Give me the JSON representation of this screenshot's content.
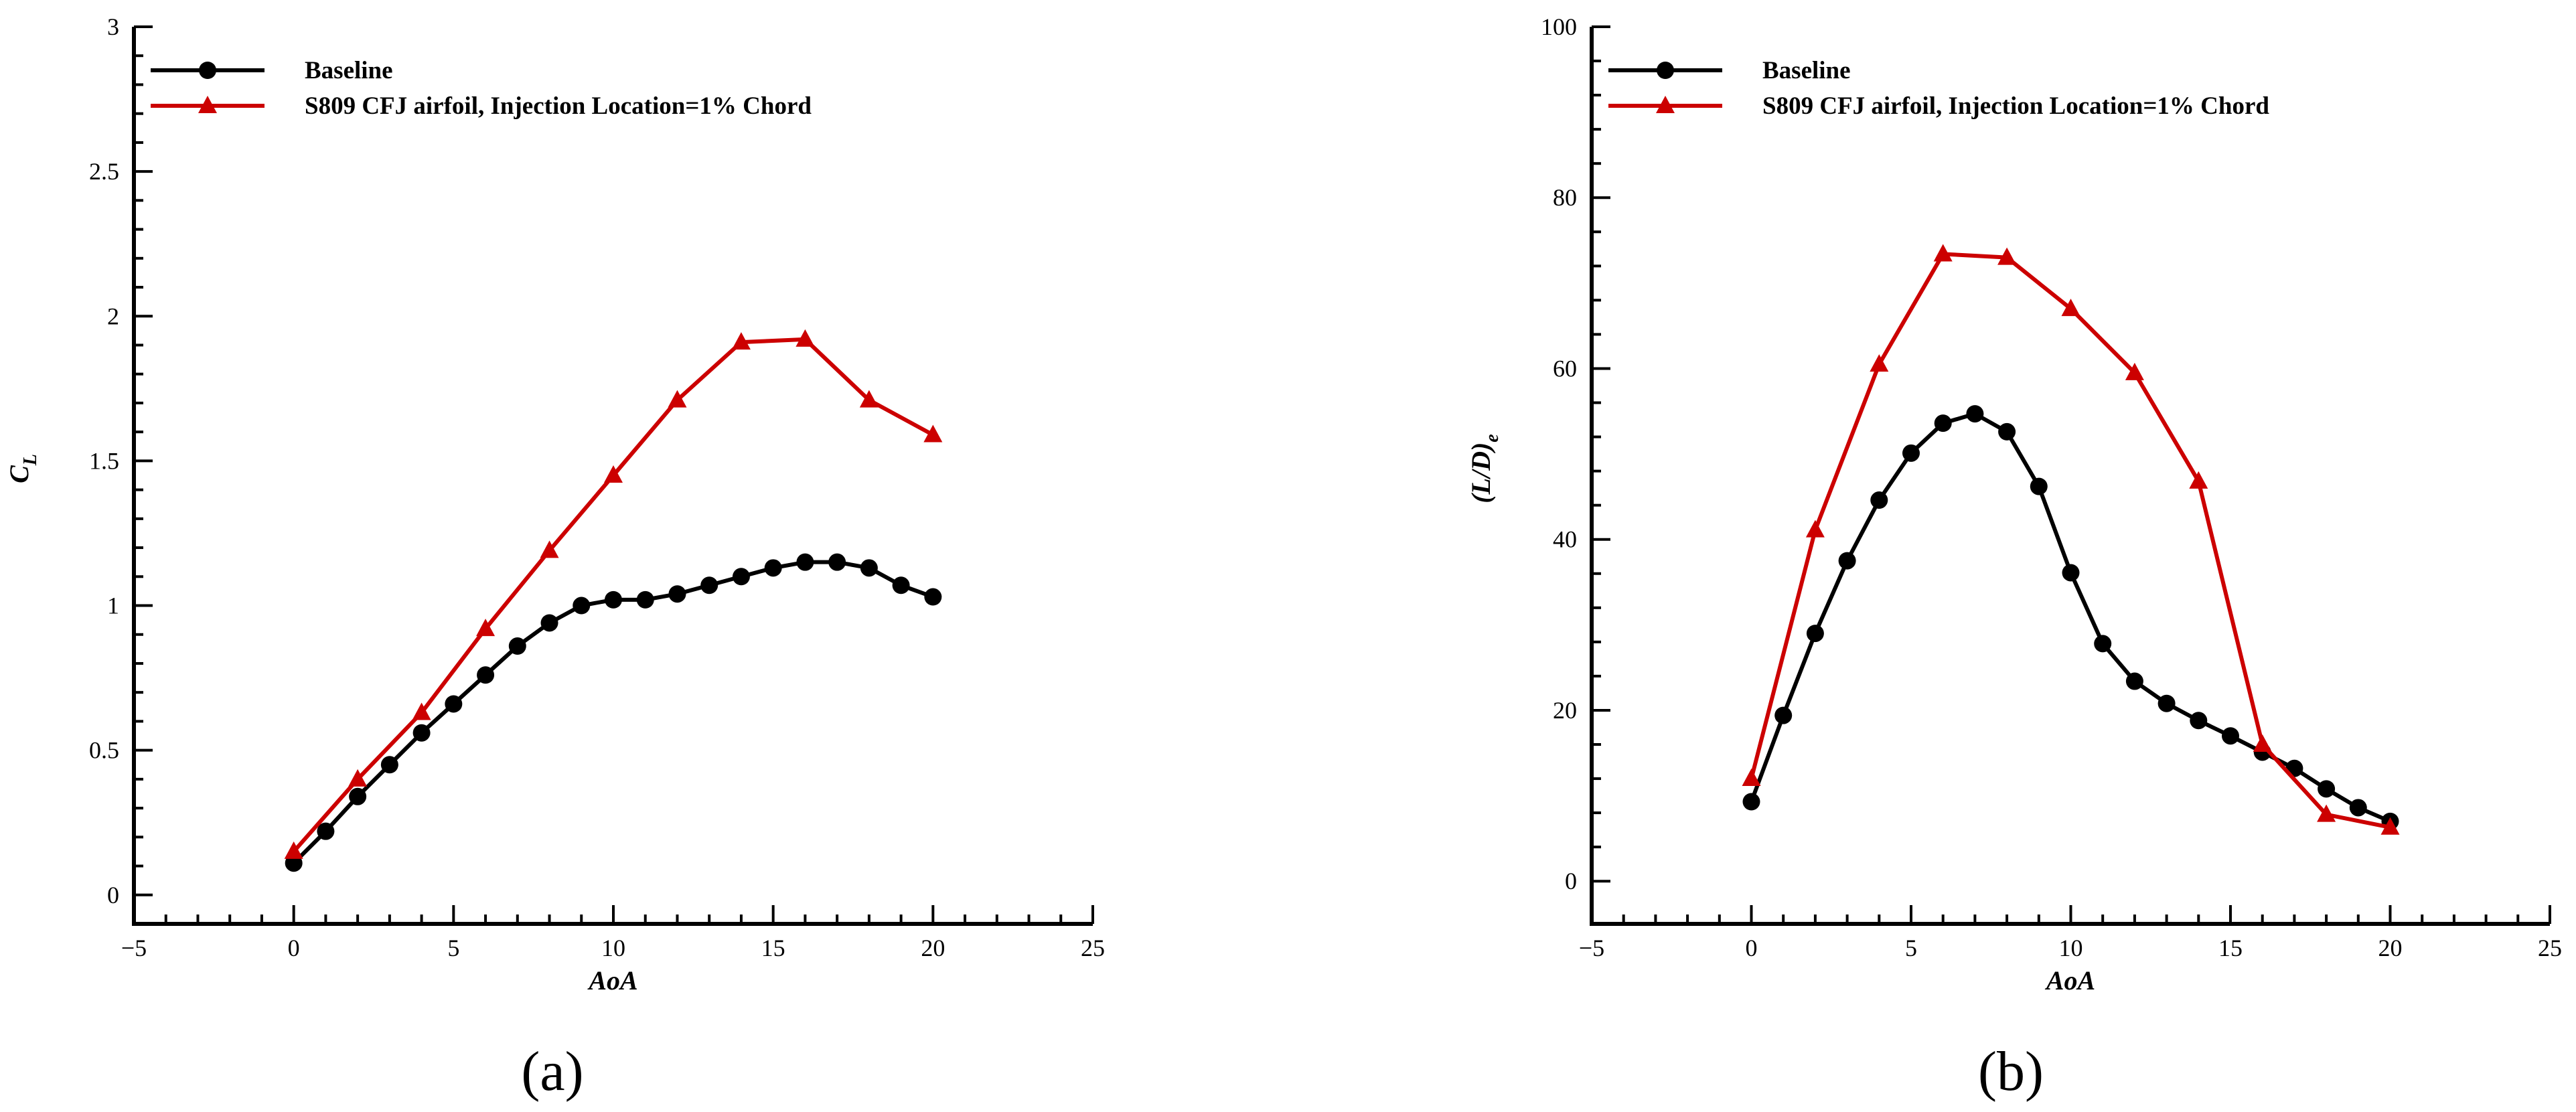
{
  "colors": {
    "baseline": "#000000",
    "cfj": "#cc0000"
  },
  "panel_labels": [
    "(a)",
    "(b)"
  ],
  "chart_data": [
    {
      "type": "line",
      "panel": "(a)",
      "xlabel": "AoA",
      "ylabel": "C",
      "ylabel_sub": "L",
      "xlim": [
        -5,
        25
      ],
      "ylim": [
        -0.1,
        3
      ],
      "xticks": [
        -5,
        0,
        5,
        10,
        15,
        20,
        25
      ],
      "xtick_labels": [
        "−5",
        "0",
        "5",
        "10",
        "15",
        "20",
        "25"
      ],
      "yticks": [
        0,
        0.5,
        1,
        1.5,
        2,
        2.5,
        3
      ],
      "ytick_labels": [
        "0",
        "0.5",
        "1",
        "1.5",
        "2",
        "2.5",
        "3"
      ],
      "legend_position": "top-left",
      "series": [
        {
          "name": "Baseline",
          "marker": "circle",
          "x": [
            0,
            1,
            2,
            3,
            4,
            5,
            6,
            7,
            8,
            9,
            10,
            11,
            12,
            13,
            14,
            15,
            16,
            17,
            18,
            19,
            20
          ],
          "y": [
            0.11,
            0.22,
            0.34,
            0.45,
            0.56,
            0.66,
            0.76,
            0.86,
            0.94,
            1.0,
            1.02,
            1.02,
            1.04,
            1.07,
            1.1,
            1.13,
            1.15,
            1.15,
            1.13,
            1.07,
            1.03
          ]
        },
        {
          "name": "S809 CFJ airfoil, Injection Location=1% Chord",
          "marker": "triangle",
          "x": [
            0,
            2,
            4,
            6,
            8,
            10,
            12,
            14,
            16,
            18,
            20
          ],
          "y": [
            0.15,
            0.4,
            0.63,
            0.92,
            1.19,
            1.45,
            1.71,
            1.91,
            1.92,
            1.71,
            1.59
          ]
        }
      ]
    },
    {
      "type": "line",
      "panel": "(b)",
      "xlabel": "AoA",
      "ylabel": "(L/D)",
      "ylabel_sub": "e",
      "xlim": [
        -5,
        25
      ],
      "ylim": [
        -5,
        100
      ],
      "xticks": [
        -5,
        0,
        5,
        10,
        15,
        20,
        25
      ],
      "xtick_labels": [
        "−5",
        "0",
        "5",
        "10",
        "15",
        "20",
        "25"
      ],
      "yticks": [
        0,
        20,
        40,
        60,
        80,
        100
      ],
      "ytick_labels": [
        "0",
        "20",
        "40",
        "60",
        "80",
        "100"
      ],
      "legend_position": "top-left",
      "series": [
        {
          "name": "Baseline",
          "marker": "circle",
          "x": [
            0,
            1,
            2,
            3,
            4,
            5,
            6,
            7,
            8,
            9,
            10,
            11,
            12,
            13,
            14,
            15,
            16,
            17,
            18,
            19,
            20
          ],
          "y": [
            9.3,
            19.4,
            29.0,
            37.5,
            44.6,
            50.1,
            53.6,
            54.7,
            52.6,
            46.2,
            36.1,
            27.8,
            23.4,
            20.8,
            18.8,
            17.0,
            15.1,
            13.2,
            10.8,
            8.6,
            7.0
          ]
        },
        {
          "name": "S809 CFJ airfoil, Injection Location=1% Chord",
          "marker": "triangle",
          "x": [
            0,
            2,
            4,
            6,
            8,
            10,
            12,
            14,
            16,
            18,
            20
          ],
          "y": [
            12.0,
            41.1,
            60.5,
            73.4,
            73.0,
            67.0,
            59.5,
            46.8,
            16.0,
            7.8,
            6.3
          ]
        }
      ]
    }
  ]
}
